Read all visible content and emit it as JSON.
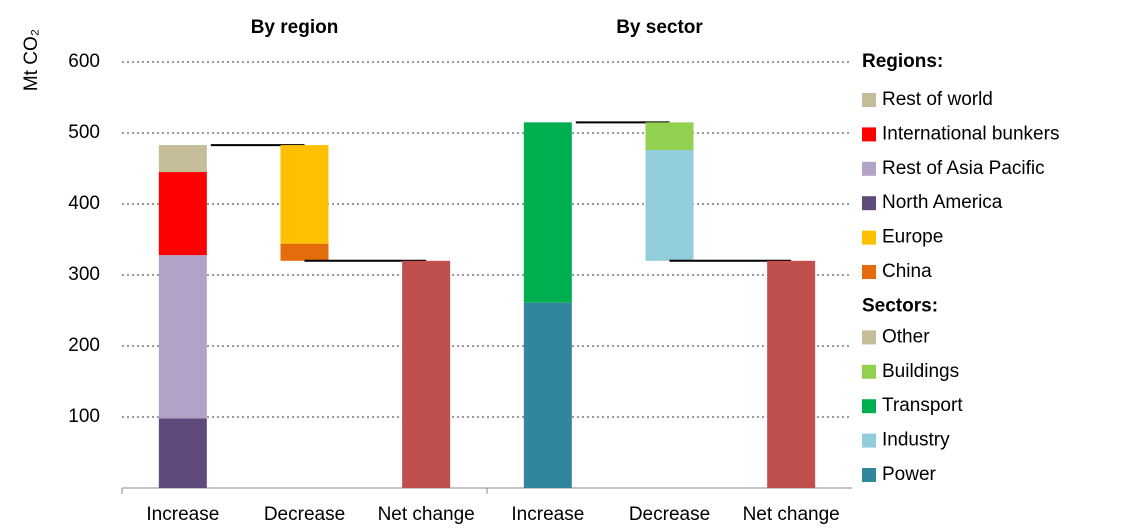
{
  "chart_data": [
    {
      "type": "waterfall",
      "title": "By region",
      "y_label": "Mt CO₂",
      "categories": [
        "Increase",
        "Decrease",
        "Net change"
      ],
      "ylim": [
        0,
        600
      ],
      "yticks": [
        100,
        200,
        300,
        400,
        500,
        600
      ],
      "grid": true,
      "legend_title": "Regions:",
      "series": [
        {
          "name": "Rest of world",
          "color": "#c4bd97",
          "values": [
            38,
            null,
            null
          ]
        },
        {
          "name": "International bunkers",
          "color": "#ff0000",
          "values": [
            117,
            null,
            null
          ]
        },
        {
          "name": "Rest of Asia Pacific",
          "color": "#b3a2c7",
          "values": [
            230,
            null,
            null
          ]
        },
        {
          "name": "North America",
          "color": "#604a7b",
          "values": [
            98,
            null,
            null
          ]
        },
        {
          "name": "Europe",
          "color": "#ffc000",
          "values": [
            null,
            -139,
            null
          ]
        },
        {
          "name": "China",
          "color": "#e46c0a",
          "values": [
            null,
            -24,
            null
          ]
        }
      ],
      "net_change": 320,
      "net_color": "#c0504d"
    },
    {
      "type": "waterfall",
      "title": "By sector",
      "categories": [
        "Increase",
        "Decrease",
        "Net change"
      ],
      "ylim": [
        0,
        600
      ],
      "legend_title": "Sectors:",
      "series": [
        {
          "name": "Other",
          "color": "#c4bd97",
          "values": [
            null,
            null,
            null
          ]
        },
        {
          "name": "Buildings",
          "color": "#92d050",
          "values": [
            null,
            -39,
            null
          ]
        },
        {
          "name": "Transport",
          "color": "#00b050",
          "values": [
            254,
            null,
            null
          ]
        },
        {
          "name": "Industry",
          "color": "#92cddc",
          "values": [
            null,
            -156,
            null
          ]
        },
        {
          "name": "Power",
          "color": "#31859c",
          "values": [
            261,
            null,
            null
          ]
        }
      ],
      "net_change": 320,
      "net_color": "#c0504d"
    }
  ]
}
